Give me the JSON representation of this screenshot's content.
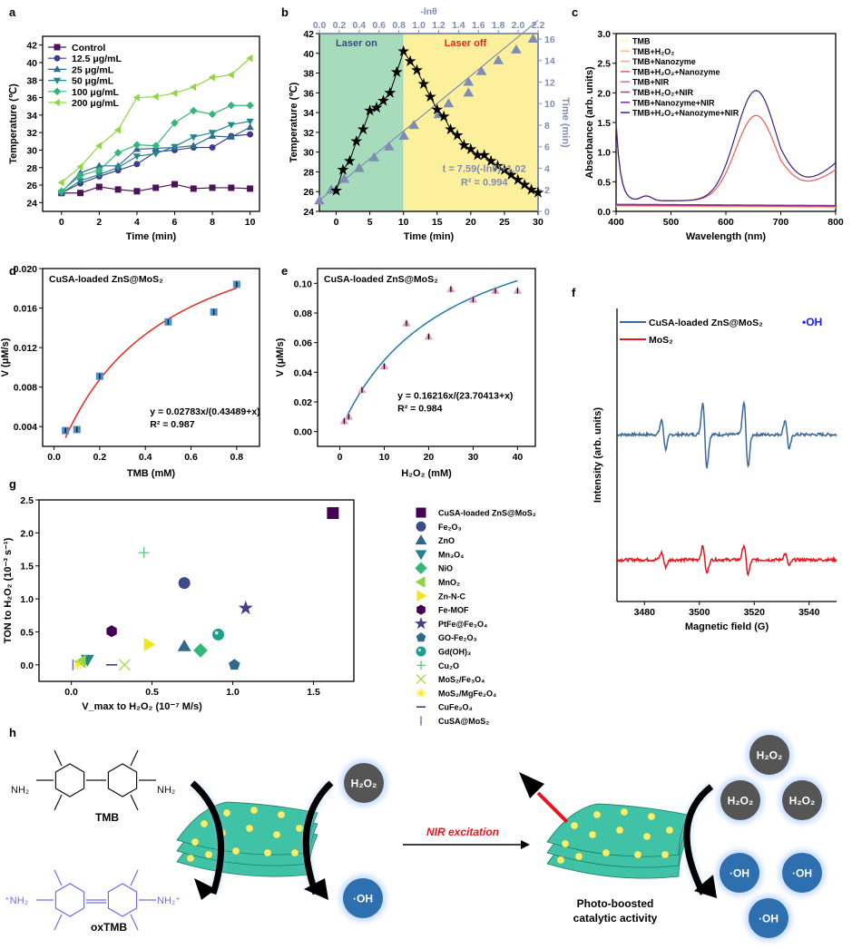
{
  "figure": {
    "panel_labels": [
      "a",
      "b",
      "c",
      "d",
      "e",
      "f",
      "g",
      "h"
    ]
  },
  "chart_data": [
    {
      "id": "a",
      "type": "line",
      "xlabel": "Time (min)",
      "ylabel": "Temperature (℃)",
      "xlim": [
        -1,
        10.5
      ],
      "ylim": [
        23,
        43
      ],
      "xticks": [
        0,
        2,
        4,
        6,
        8,
        10
      ],
      "yticks": [
        24,
        26,
        28,
        30,
        32,
        34,
        36,
        38,
        40,
        42
      ],
      "legend_position": "top-left",
      "x": [
        0,
        1,
        2,
        3,
        4,
        5,
        6,
        7,
        8,
        9,
        10
      ],
      "series": [
        {
          "name": "Control",
          "marker": "square",
          "color": "#4b1258",
          "values": [
            25.1,
            25.1,
            25.8,
            25.5,
            25.3,
            25.7,
            26.1,
            25.6,
            25.7,
            25.7,
            25.6
          ]
        },
        {
          "name": "12.5 μg/mL",
          "marker": "circle",
          "color": "#3f3b8c",
          "values": [
            25.1,
            26.2,
            27.0,
            27.7,
            28.4,
            29.8,
            30.0,
            30.3,
            30.3,
            31.6,
            31.8
          ]
        },
        {
          "name": "25 μg/mL",
          "marker": "triangle-up",
          "color": "#2f6a8f",
          "values": [
            25.2,
            27.4,
            28.2,
            28.2,
            30.1,
            30.2,
            30.3,
            30.5,
            31.6,
            31.5,
            32.6
          ]
        },
        {
          "name": "50 μg/mL",
          "marker": "triangle-down",
          "color": "#23868c",
          "values": [
            25.1,
            26.5,
            27.2,
            28.0,
            29.3,
            29.6,
            30.4,
            31.5,
            32.0,
            32.9,
            33.3
          ]
        },
        {
          "name": "100 μg/mL",
          "marker": "diamond",
          "color": "#35b779",
          "values": [
            25.3,
            27.1,
            27.7,
            29.7,
            30.6,
            30.5,
            33.1,
            34.5,
            34.1,
            35.1,
            35.1
          ]
        },
        {
          "name": "200 μg/mL",
          "marker": "triangle-left",
          "color": "#90d743",
          "values": [
            26.3,
            28.1,
            30.5,
            32.3,
            36.0,
            36.1,
            36.5,
            37.2,
            38.3,
            38.6,
            40.5
          ]
        }
      ]
    },
    {
      "id": "b",
      "type": "line",
      "xlabel": "Time (min)",
      "ylabel": "Temperature (℃)",
      "x2label": "-lnθ",
      "y2label": "Time (min)",
      "xlim": [
        -2.5,
        30
      ],
      "ylim": [
        24,
        42
      ],
      "x2lim": [
        0,
        2.2
      ],
      "y2lim": [
        0,
        16.5
      ],
      "xticks": [
        0,
        5,
        10,
        15,
        20,
        25,
        30
      ],
      "yticks": [
        24,
        26,
        28,
        30,
        32,
        34,
        36,
        38,
        40,
        42
      ],
      "x2ticks": [
        0.0,
        0.2,
        0.4,
        0.6,
        0.8,
        1.0,
        1.2,
        1.4,
        1.6,
        1.8,
        2.0,
        2.2
      ],
      "y2ticks": [
        0,
        2,
        4,
        6,
        8,
        10,
        12,
        14,
        16
      ],
      "regions": [
        {
          "label": "Laser on",
          "from": -2.5,
          "to": 10,
          "color": "#a6dcbc",
          "label_color": "#3b4f7d"
        },
        {
          "label": "Laser off",
          "from": 10,
          "to": 30,
          "color": "#fcf09c",
          "label_color": "#e8281e"
        }
      ],
      "annotation": [
        "t = 7.59(-lnθ)+1.02",
        "R² = 0.994"
      ],
      "temperature_series": {
        "name": "Temperature",
        "marker": "star",
        "color": "#000000",
        "x": [
          0,
          1,
          2,
          3,
          4,
          5,
          6,
          7,
          8,
          9,
          10,
          11,
          12,
          13,
          14,
          15,
          16,
          17,
          18,
          19,
          20,
          21,
          22,
          23,
          24,
          25,
          26,
          27,
          28,
          29,
          30
        ],
        "values": [
          26.1,
          28.2,
          29.1,
          31.1,
          32.3,
          34.2,
          34.5,
          35.2,
          36.0,
          38.1,
          40.2,
          39.2,
          38.3,
          36.9,
          35.6,
          34.3,
          33.6,
          32.3,
          31.7,
          30.7,
          30.3,
          29.7,
          29.7,
          29.1,
          28.6,
          28.2,
          27.7,
          27.2,
          26.7,
          26.2,
          25.9
        ]
      },
      "fit_series": {
        "name": "Cooling fit",
        "marker": "triangle-up",
        "color": "#7f8db3",
        "x_neglntheta": [
          0.0,
          0.12,
          0.25,
          0.4,
          0.55,
          0.7,
          0.85,
          0.95,
          1.2,
          1.3,
          1.5,
          1.5,
          1.63,
          1.8,
          1.98,
          2.15
        ],
        "values": [
          1,
          2,
          3,
          4,
          5,
          6,
          7,
          8,
          9,
          10,
          11,
          12,
          13,
          14,
          15,
          16
        ]
      }
    },
    {
      "id": "c",
      "type": "line",
      "xlabel": "Wavelength (nm)",
      "ylabel": "Absorbance (arb. units)",
      "xlim": [
        400,
        800
      ],
      "ylim": [
        0,
        3.0
      ],
      "xticks": [
        400,
        500,
        600,
        700,
        800
      ],
      "yticks": [
        0.0,
        0.5,
        1.0,
        1.5,
        2.0,
        2.5,
        3.0
      ],
      "legend_position": "top-left",
      "series": [
        {
          "name": "TMB",
          "color": "#fcf6b4",
          "peak": 0.08
        },
        {
          "name": "TMB+H₂O₂",
          "color": "#f9c07a",
          "peak": 0.09
        },
        {
          "name": "TMB+Nanozyme",
          "color": "#f6a98a",
          "peak": 0.1
        },
        {
          "name": "TMB+H₂O₂+Nanozyme",
          "color": "#ef5a58",
          "peak": 1.44,
          "peak_nm": 655,
          "min_nm": 755,
          "min": 0.43,
          "end": 0.6
        },
        {
          "name": "TMB+NIR",
          "color": "#e0688a",
          "peak": 0.1
        },
        {
          "name": "TMB+H₂O₂+NIR",
          "color": "#b0388e",
          "peak": 0.11
        },
        {
          "name": "TMB+Nanozyme+NIR",
          "color": "#7a2b9a",
          "peak": 0.12
        },
        {
          "name": "TMB+H₂O₂+Nanozyme+NIR",
          "color": "#3d1f78",
          "peak": 1.86,
          "peak_nm": 655,
          "min_nm": 755,
          "min": 0.51,
          "end": 0.73
        }
      ]
    },
    {
      "id": "d",
      "type": "scatter",
      "title": "CuSA-loaded ZnS@MoS₂",
      "xlabel": "TMB (mM)",
      "ylabel": "V (μM/s)",
      "xlim": [
        -0.05,
        0.9
      ],
      "ylim": [
        0.002,
        0.02
      ],
      "xticks": [
        0.0,
        0.2,
        0.4,
        0.6,
        0.8
      ],
      "yticks": [
        0.004,
        0.008,
        0.012,
        0.016,
        0.02
      ],
      "x": [
        0.05,
        0.1,
        0.2,
        0.5,
        0.7,
        0.8
      ],
      "values": [
        0.0036,
        0.0037,
        0.0091,
        0.0146,
        0.0156,
        0.0184
      ],
      "fit": {
        "vmax": 0.02783,
        "km": 0.43489,
        "color": "#e8281e"
      },
      "marker_color": "#4a8fc9",
      "annotation": [
        "y = 0.02783x/(0.43489+x)",
        "R² = 0.987"
      ]
    },
    {
      "id": "e",
      "type": "scatter",
      "title": "CuSA-loaded ZnS@MoS₂",
      "xlabel": "H₂O₂ (mM)",
      "ylabel": "V (μM/s)",
      "xlim": [
        -5,
        44
      ],
      "ylim": [
        -0.01,
        0.11
      ],
      "xticks": [
        0,
        10,
        20,
        30,
        40
      ],
      "yticks": [
        0.0,
        0.02,
        0.04,
        0.06,
        0.08,
        0.1
      ],
      "x": [
        1,
        2,
        5,
        10,
        15,
        20,
        25,
        30,
        35,
        40
      ],
      "values": [
        0.007,
        0.01,
        0.028,
        0.044,
        0.073,
        0.064,
        0.096,
        0.089,
        0.095,
        0.095
      ],
      "fit": {
        "vmax": 0.16216,
        "km": 23.70413,
        "color": "#1f77b4"
      },
      "marker_color": "#e3a0c8",
      "annotation": [
        "y = 0.16216x/(23.70413+x)",
        "R² = 0.984"
      ]
    },
    {
      "id": "f",
      "type": "scatter",
      "xlabel": "V_max to H₂O₂ (10⁻⁷ M/s)",
      "ylabel": "TON to H₂O₂ (10⁻³ s⁻¹)",
      "xlim": [
        -0.2,
        1.75
      ],
      "ylim": [
        -0.25,
        2.5
      ],
      "xticks": [
        0.0,
        0.5,
        1.0,
        1.5
      ],
      "yticks": [
        0.0,
        0.5,
        1.0,
        1.5,
        2.0,
        2.5
      ],
      "legend_position": "right-outside",
      "points": [
        {
          "name": "CuSA-loaded ZnS@MoS₂",
          "x": 1.62,
          "y": 2.3,
          "marker": "square",
          "color": "#440154"
        },
        {
          "name": "Fe₂O₃",
          "x": 0.7,
          "y": 1.24,
          "marker": "circle",
          "color": "#3e4a89"
        },
        {
          "name": "ZnO",
          "x": 0.7,
          "y": 0.28,
          "marker": "triangle-up",
          "color": "#31688e"
        },
        {
          "name": "Mn₃O₄",
          "x": 0.1,
          "y": 0.08,
          "marker": "triangle-down",
          "color": "#26828e"
        },
        {
          "name": "NiO",
          "x": 0.8,
          "y": 0.22,
          "marker": "diamond",
          "color": "#35b779"
        },
        {
          "name": "MnO₂",
          "x": 0.06,
          "y": 0.05,
          "marker": "triangle-left",
          "color": "#8ed645"
        },
        {
          "name": "Zn-N-C",
          "x": 0.48,
          "y": 0.31,
          "marker": "triangle-right",
          "color": "#f3e51e"
        },
        {
          "name": "Fe-MOF",
          "x": 0.25,
          "y": 0.51,
          "marker": "hexagon",
          "color": "#440154"
        },
        {
          "name": "PtFe@Fe₃O₄",
          "x": 1.08,
          "y": 0.86,
          "marker": "star",
          "color": "#433e85"
        },
        {
          "name": "GO-Fe₂O₃",
          "x": 1.01,
          "y": 0.0,
          "marker": "pentagon",
          "color": "#2d6b8e"
        },
        {
          "name": "Gd(OH)₃",
          "x": 0.91,
          "y": 0.46,
          "marker": "sphere",
          "color": "#1f9e89"
        },
        {
          "name": "Cu₂O",
          "x": 0.45,
          "y": 1.7,
          "marker": "plus",
          "color": "#4ac16d"
        },
        {
          "name": "MoS₂/Fe₃O₄",
          "x": 0.33,
          "y": 0.0,
          "marker": "x",
          "color": "#9fda3a"
        },
        {
          "name": "MoS₂/MgFe₂O₄",
          "x": 0.04,
          "y": 0.0,
          "marker": "asterisk",
          "color": "#fde725"
        },
        {
          "name": "CuFe₂O₄",
          "x": 0.25,
          "y": 0.0,
          "marker": "hline",
          "color": "#482677"
        },
        {
          "name": "CuSA@MoS₂",
          "x": 0.01,
          "y": 0.0,
          "marker": "vline",
          "color": "#7b6fb0"
        }
      ]
    },
    {
      "id": "g",
      "type": "line",
      "xlabel": "Magnetic field (G)",
      "ylabel": "Intensity (arb. units)",
      "xlim": [
        3470,
        3550
      ],
      "xticks": [
        3480,
        3500,
        3520,
        3540
      ],
      "legend_position": "top-left",
      "annotation": "•OH",
      "annotation_color": "#1a1aff",
      "series": [
        {
          "name": "CuSA-loaded ZnS@MoS₂",
          "color": "#3a6a9b",
          "peaks_G": [
            3487,
            3502,
            3517,
            3532
          ],
          "amplitudes": [
            0.45,
            1.0,
            1.0,
            0.45
          ]
        },
        {
          "name": "MoS₂",
          "color": "#e8141e",
          "peaks_G": [
            3487,
            3502,
            3517,
            3532
          ],
          "amplitudes": [
            0.22,
            0.42,
            0.45,
            0.18
          ]
        }
      ]
    }
  ],
  "schematic": {
    "molecule_top": {
      "name": "TMB",
      "left_group": "NH₂",
      "right_group": "NH₂"
    },
    "molecule_bottom": {
      "name": "oxTMB",
      "left_group": "⁺NH₂",
      "right_group": "NH₂⁺",
      "color": "#6d6ee6"
    },
    "bubbles_left": [
      {
        "label": "H₂O₂",
        "kind": "reactant"
      },
      {
        "label": "·OH",
        "kind": "product"
      }
    ],
    "arrow_label": "NIR excitation",
    "arrow_label_color": "#e8141e",
    "caption": [
      "Photo-boosted",
      "catalytic activity"
    ],
    "bubbles_right": [
      {
        "label": "H₂O₂",
        "kind": "reactant"
      },
      {
        "label": "H₂O₂",
        "kind": "reactant"
      },
      {
        "label": "H₂O₂",
        "kind": "reactant"
      },
      {
        "label": "·OH",
        "kind": "product"
      },
      {
        "label": "·OH",
        "kind": "product"
      },
      {
        "label": "·OH",
        "kind": "product"
      }
    ],
    "colors": {
      "reactant": "#555555",
      "product": "#2e6fb0",
      "sheet": "#3fc2a5",
      "dot": "#f3f070"
    }
  }
}
